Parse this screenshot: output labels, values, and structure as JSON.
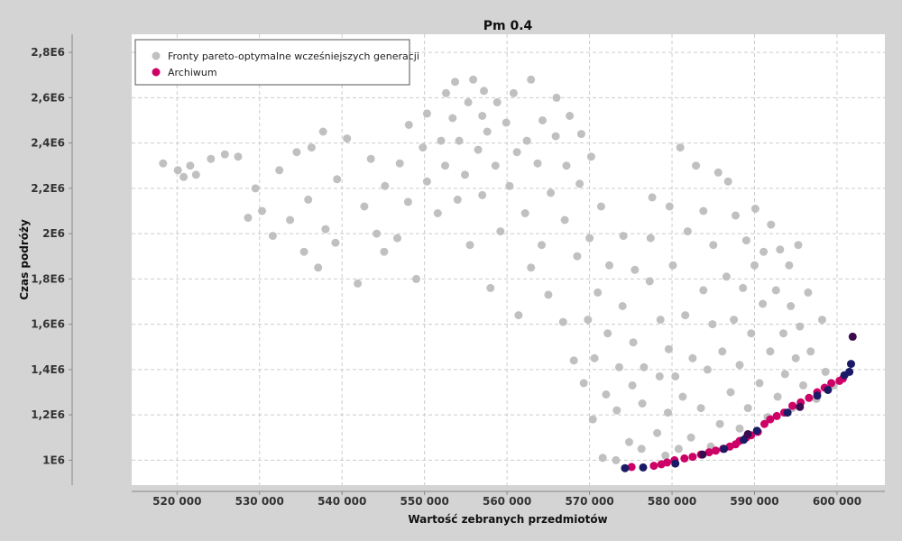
{
  "chart_data": {
    "type": "scatter",
    "title": "Pm 0.4",
    "xlabel": "Wartość zebranych przedmiotów",
    "ylabel": "Czas podróży",
    "xlim": [
      514500,
      605800
    ],
    "ylim": [
      890000,
      2880000
    ],
    "x_ticks": [
      {
        "value": 520000,
        "label": "520 000"
      },
      {
        "value": 530000,
        "label": "530 000"
      },
      {
        "value": 540000,
        "label": "540 000"
      },
      {
        "value": 550000,
        "label": "550 000"
      },
      {
        "value": 560000,
        "label": "560 000"
      },
      {
        "value": 570000,
        "label": "570 000"
      },
      {
        "value": 580000,
        "label": "580 000"
      },
      {
        "value": 590000,
        "label": "590 000"
      },
      {
        "value": 600000,
        "label": "600 000"
      }
    ],
    "y_ticks": [
      {
        "value": 1000000,
        "label": "1E6"
      },
      {
        "value": 1200000,
        "label": "1,2E6"
      },
      {
        "value": 1400000,
        "label": "1,4E6"
      },
      {
        "value": 1600000,
        "label": "1,6E6"
      },
      {
        "value": 1800000,
        "label": "1,8E6"
      },
      {
        "value": 2000000,
        "label": "2E6"
      },
      {
        "value": 2200000,
        "label": "2,2E6"
      },
      {
        "value": 2400000,
        "label": "2,4E6"
      },
      {
        "value": 2600000,
        "label": "2,6E6"
      },
      {
        "value": 2800000,
        "label": "2,8E6"
      }
    ],
    "grid": true,
    "legend_position": "top-left",
    "series": [
      {
        "name": "Fronty pareto-optymalne wcześniejszych generacji",
        "color": "#c0c0c0",
        "x": [
          518300,
          520100,
          520800,
          521600,
          522300,
          524100,
          525800,
          527400,
          528600,
          529500,
          530300,
          531600,
          532400,
          533700,
          534500,
          535400,
          535900,
          536300,
          537100,
          537700,
          538000,
          539200,
          539400,
          540600,
          541900,
          542700,
          543500,
          544200,
          545100,
          545200,
          546700,
          547000,
          548000,
          548100,
          549000,
          549800,
          550300,
          550300,
          551600,
          552000,
          552500,
          552600,
          553400,
          553700,
          554000,
          554200,
          554900,
          555300,
          555500,
          555900,
          556500,
          557000,
          557000,
          557200,
          557600,
          558000,
          558600,
          558800,
          559200,
          559900,
          560300,
          560800,
          561200,
          561400,
          562200,
          562400,
          562900,
          562900,
          563700,
          564200,
          564300,
          565000,
          565300,
          565900,
          566000,
          566800,
          567000,
          567200,
          567600,
          568100,
          568500,
          568800,
          569000,
          569300,
          569800,
          570000,
          570200,
          570400,
          570600,
          571000,
          571400,
          571600,
          572000,
          572200,
          572400,
          573200,
          573300,
          573600,
          574000,
          574100,
          574800,
          575200,
          575300,
          575500,
          576300,
          576400,
          576600,
          577300,
          577400,
          577600,
          578200,
          578500,
          578600,
          579200,
          579500,
          579600,
          579700,
          580100,
          580400,
          580800,
          581000,
          581300,
          581600,
          581900,
          582300,
          582500,
          582900,
          583500,
          583800,
          583800,
          584300,
          584700,
          584900,
          585000,
          585600,
          585800,
          586100,
          586600,
          586800,
          587100,
          587500,
          587700,
          588200,
          588200,
          588600,
          589000,
          589200,
          589600,
          590000,
          590100,
          590600,
          591000,
          591100,
          591600,
          591900,
          592000,
          592600,
          592800,
          593100,
          593500,
          593700,
          594200,
          594400,
          594600,
          595000,
          595300,
          595500,
          595900,
          596500,
          596800,
          597500,
          598200,
          598600,
          599600
        ],
        "y": [
          2310000,
          2280000,
          2250000,
          2300000,
          2260000,
          2330000,
          2350000,
          2340000,
          2070000,
          2200000,
          2100000,
          1990000,
          2280000,
          2060000,
          2360000,
          1920000,
          2150000,
          2380000,
          1850000,
          2450000,
          2020000,
          1960000,
          2240000,
          2420000,
          1780000,
          2120000,
          2330000,
          2000000,
          1920000,
          2210000,
          1980000,
          2310000,
          2140000,
          2480000,
          1800000,
          2380000,
          2230000,
          2530000,
          2090000,
          2410000,
          2300000,
          2620000,
          2510000,
          2670000,
          2150000,
          2410000,
          2260000,
          2580000,
          1950000,
          2680000,
          2370000,
          2520000,
          2170000,
          2630000,
          2450000,
          1760000,
          2300000,
          2580000,
          2010000,
          2490000,
          2210000,
          2620000,
          2360000,
          1640000,
          2090000,
          2410000,
          1850000,
          2680000,
          2310000,
          1950000,
          2500000,
          1730000,
          2180000,
          2430000,
          2600000,
          1610000,
          2060000,
          2300000,
          2520000,
          1440000,
          1900000,
          2220000,
          2440000,
          1340000,
          1620000,
          1980000,
          2340000,
          1180000,
          1450000,
          1740000,
          2120000,
          1010000,
          1290000,
          1560000,
          1860000,
          1000000,
          1220000,
          1410000,
          1680000,
          1990000,
          1080000,
          1330000,
          1520000,
          1840000,
          1050000,
          1250000,
          1410000,
          1790000,
          1980000,
          2160000,
          1120000,
          1370000,
          1620000,
          1020000,
          1210000,
          1490000,
          2120000,
          1860000,
          1370000,
          1050000,
          2380000,
          1280000,
          1640000,
          2010000,
          1100000,
          1450000,
          2300000,
          1230000,
          1750000,
          2100000,
          1400000,
          1060000,
          1600000,
          1950000,
          2270000,
          1160000,
          1480000,
          1810000,
          2230000,
          1300000,
          1620000,
          2080000,
          1140000,
          1420000,
          1760000,
          1970000,
          1230000,
          1560000,
          1860000,
          2110000,
          1340000,
          1690000,
          1920000,
          1190000,
          1480000,
          2040000,
          1750000,
          1280000,
          1930000,
          1560000,
          1380000,
          1860000,
          1680000,
          1230000,
          1450000,
          1950000,
          1590000,
          1330000,
          1740000,
          1480000,
          1270000,
          1620000,
          1390000,
          1330000
        ]
      },
      {
        "name": "Archiwum",
        "color": "#cc0066",
        "x": [
          575100,
          577800,
          578700,
          579400,
          580300,
          581500,
          582500,
          583500,
          584500,
          585300,
          586200,
          587000,
          587700,
          588200,
          589000,
          589600,
          590400,
          591200,
          591900,
          592700,
          593600,
          594600,
          595600,
          596600,
          597600,
          598500,
          599300,
          600300,
          600700
        ],
        "y": [
          970000,
          975000,
          982000,
          990000,
          1000000,
          1008000,
          1015000,
          1025000,
          1035000,
          1042000,
          1050000,
          1060000,
          1070000,
          1085000,
          1100000,
          1110000,
          1125000,
          1160000,
          1180000,
          1195000,
          1210000,
          1240000,
          1255000,
          1275000,
          1300000,
          1320000,
          1340000,
          1350000,
          1360000
        ]
      },
      {
        "color": "#1a1a66",
        "x": [
          574300,
          576500,
          580400,
          586300,
          588700,
          590300,
          594000,
          597600,
          598900,
          600900,
          601500,
          601700
        ],
        "y": [
          965000,
          968000,
          985000,
          1050000,
          1090000,
          1130000,
          1210000,
          1285000,
          1310000,
          1375000,
          1390000,
          1425000
        ]
      },
      {
        "color": "#3b0a4f",
        "x": [
          583700,
          589200,
          595500,
          601900
        ],
        "y": [
          1025000,
          1115000,
          1235000,
          1545000
        ]
      }
    ]
  }
}
